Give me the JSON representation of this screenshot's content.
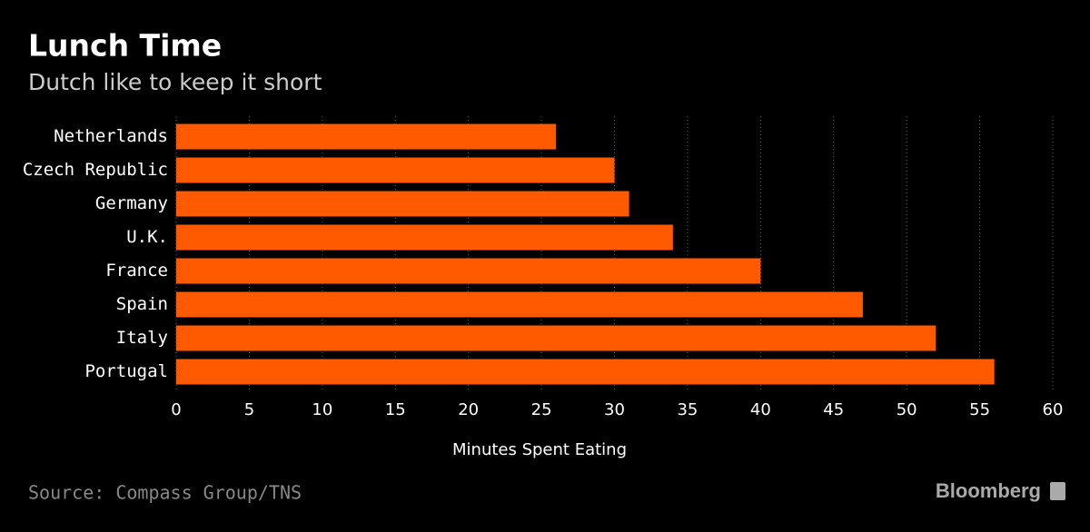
{
  "chart_data": {
    "type": "hbar",
    "title": "Lunch Time",
    "subtitle": "Dutch like to keep it short",
    "categories": [
      "Netherlands",
      "Czech Republic",
      "Germany",
      "U.K.",
      "France",
      "Spain",
      "Italy",
      "Portugal"
    ],
    "values": [
      26,
      30,
      31,
      34,
      40,
      47,
      52,
      56
    ],
    "color": "#ff5a00",
    "xlabel": "Minutes Spent Eating",
    "xlim": [
      0,
      60
    ],
    "xticks": [
      0,
      5,
      10,
      15,
      20,
      25,
      30,
      35,
      40,
      45,
      50,
      55,
      60
    ],
    "grid": true,
    "source": "Source: Compass Group/TNS",
    "brand": "Bloomberg"
  }
}
